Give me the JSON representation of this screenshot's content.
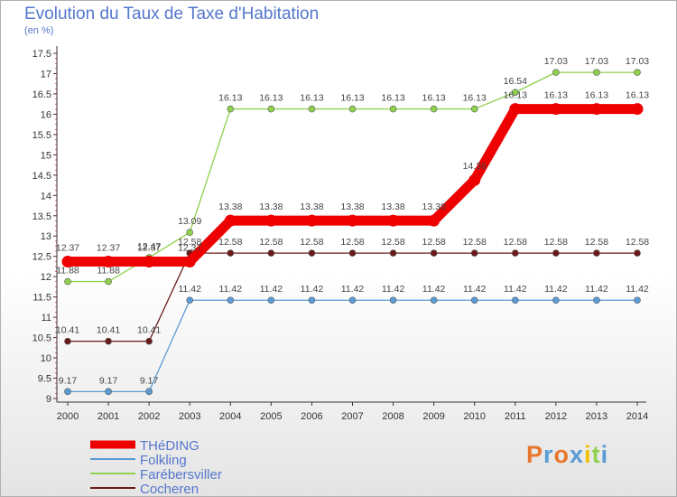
{
  "title": "Evolution du Taux de Taxe d'Habitation",
  "subtitle": "(en %)",
  "logo": "Proxiti",
  "chart_data": {
    "type": "line",
    "x": [
      "2000",
      "2001",
      "2002",
      "2003",
      "2004",
      "2005",
      "2006",
      "2007",
      "2008",
      "2009",
      "2010",
      "2011",
      "2012",
      "2013",
      "2014"
    ],
    "ylim": [
      9,
      17.5
    ],
    "yticks": [
      "9",
      "9.5",
      "10",
      "10.5",
      "11",
      "11.5",
      "12",
      "12.5",
      "13",
      "13.5",
      "14",
      "14.5",
      "15",
      "15.5",
      "16",
      "16.5",
      "17",
      "17.5"
    ],
    "grid": false,
    "legend_position": "bottom-left",
    "series": [
      {
        "name": "THéDING",
        "color": "#ee0000",
        "values": [
          12.37,
          12.37,
          12.37,
          12.37,
          13.38,
          13.38,
          13.38,
          13.38,
          13.38,
          13.38,
          14.38,
          16.13,
          16.13,
          16.13,
          16.13
        ],
        "labels": [
          "12.37",
          "12.37",
          "12.37",
          "12.37",
          "13.38",
          "13.38",
          "13.38",
          "13.38",
          "13.38",
          "13.38",
          "14.38",
          "16.13",
          "16.13",
          "16.13",
          "16.13"
        ]
      },
      {
        "name": "Folkling",
        "color": "#5b9bd5",
        "values": [
          9.17,
          9.17,
          9.17,
          11.42,
          11.42,
          11.42,
          11.42,
          11.42,
          11.42,
          11.42,
          11.42,
          11.42,
          11.42,
          11.42,
          11.42
        ],
        "labels": [
          "9.17",
          "9.17",
          "9.17",
          "11.42",
          "11.42",
          "11.42",
          "11.42",
          "11.42",
          "11.42",
          "11.42",
          "11.42",
          "11.42",
          "11.42",
          "11.42",
          "11.42"
        ]
      },
      {
        "name": "Farébersviller",
        "color": "#8fd14f",
        "values": [
          11.88,
          11.88,
          12.47,
          13.09,
          16.13,
          16.13,
          16.13,
          16.13,
          16.13,
          16.13,
          16.13,
          16.54,
          17.03,
          17.03,
          17.03
        ],
        "labels": [
          "11.88",
          "11.88",
          "12.47",
          "13.09",
          "16.13",
          "16.13",
          "16.13",
          "16.13",
          "16.13",
          "16.13",
          "16.13",
          "16.54",
          "17.03",
          "17.03",
          "17.03"
        ]
      },
      {
        "name": "Cocheren",
        "color": "#6b1a1a",
        "values": [
          10.41,
          10.41,
          10.41,
          12.58,
          12.58,
          12.58,
          12.58,
          12.58,
          12.58,
          12.58,
          12.58,
          12.58,
          12.58,
          12.58,
          12.58
        ],
        "labels": [
          "10.41",
          "10.41",
          "10.41",
          "12.58",
          "12.58",
          "12.58",
          "12.58",
          "12.58",
          "12.58",
          "12.58",
          "12.58",
          "12.58",
          "12.58",
          "12.58",
          "12.58"
        ]
      }
    ]
  }
}
